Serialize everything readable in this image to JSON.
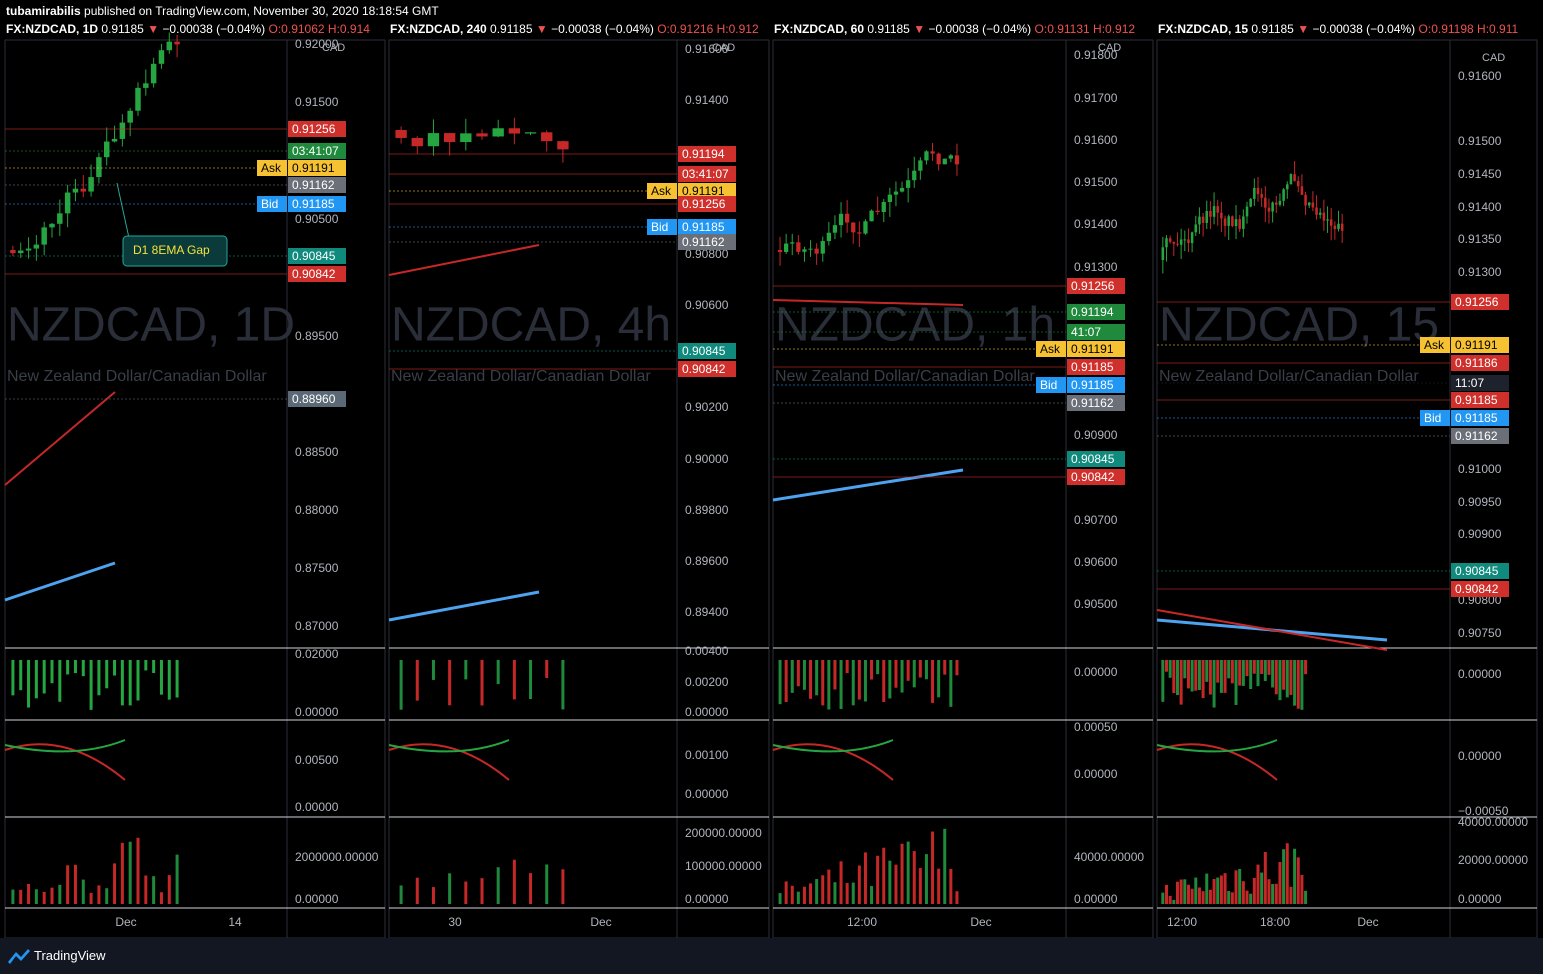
{
  "top_bar": {
    "user": "tubamirabilis",
    "text": "published on TradingView.com, November 30, 2020 18:18:54 GMT"
  },
  "footer": {
    "brand": "TradingView"
  },
  "panels": [
    {
      "header": {
        "symbol": "FX:NZDCAD, 1D",
        "price": "0.91185",
        "arrow": "▼",
        "change": "−0.00038 (−0.04%)",
        "open": "O:0.91062",
        "high": "H:0.914"
      },
      "watermark": "NZDCAD, 1D",
      "subtitle": "New Zealand Dollar/Canadian Dollar",
      "currency": "CAD",
      "price_axis": [
        "0.92000",
        "0.91500",
        "0.90500",
        "0.89500",
        "0.88500",
        "0.88000",
        "0.87500",
        "0.87000"
      ],
      "tags": [
        {
          "text": "0.91256",
          "kind": "red"
        },
        {
          "text": "03:41:07",
          "kind": "green"
        },
        {
          "text": "0.91191",
          "kind": "yellow",
          "prefix": "Ask"
        },
        {
          "text": "0.91162",
          "kind": "gray"
        },
        {
          "text": "0.91185",
          "kind": "blue",
          "prefix": "Bid"
        },
        {
          "text": "0.90845",
          "kind": "teal"
        },
        {
          "text": "0.90842",
          "kind": "red"
        },
        {
          "text": "0.88960",
          "kind": "slate"
        }
      ],
      "callout": "D1 8EMA Gap",
      "sub_axis": [
        "0.02000",
        "0.00000",
        "0.00500",
        "0.00000",
        "2000000.00000",
        "0.00000"
      ],
      "time_axis": [
        "Dec",
        "14"
      ]
    },
    {
      "header": {
        "symbol": "FX:NZDCAD, 240",
        "price": "0.91185",
        "arrow": "▼",
        "change": "−0.00038 (−0.04%)",
        "open": "O:0.91216",
        "high": "H:0.912"
      },
      "watermark": "NZDCAD, 4h",
      "subtitle": "New Zealand Dollar/Canadian Dollar",
      "currency": "CAD",
      "price_axis": [
        "0.91600",
        "0.91400",
        "0.90800",
        "0.90600",
        "0.90200",
        "0.90000",
        "0.89800",
        "0.89600",
        "0.89400"
      ],
      "tags": [
        {
          "text": "0.91194",
          "kind": "red"
        },
        {
          "text": "03:41:07",
          "kind": "red"
        },
        {
          "text": "0.91191",
          "kind": "yellow",
          "prefix": "Ask"
        },
        {
          "text": "0.91256",
          "kind": "red"
        },
        {
          "text": "0.91185",
          "kind": "blue",
          "prefix": "Bid"
        },
        {
          "text": "0.91162",
          "kind": "gray"
        },
        {
          "text": "0.90845",
          "kind": "teal"
        },
        {
          "text": "0.90842",
          "kind": "red"
        }
      ],
      "sub_axis": [
        "0.00400",
        "0.00200",
        "0.00000",
        "0.00100",
        "0.00000",
        "200000.00000",
        "100000.00000",
        "0.00000"
      ],
      "time_axis": [
        "30",
        "Dec"
      ]
    },
    {
      "header": {
        "symbol": "FX:NZDCAD, 60",
        "price": "0.91185",
        "arrow": "▼",
        "change": "−0.00038 (−0.04%)",
        "open": "O:0.91131",
        "high": "H:0.912"
      },
      "watermark": "NZDCAD, 1h",
      "subtitle": "New Zealand Dollar/Canadian Dollar",
      "currency": "CAD",
      "price_axis": [
        "0.91800",
        "0.91700",
        "0.91600",
        "0.91500",
        "0.91400",
        "0.91300",
        "0.90900",
        "0.90700",
        "0.90600",
        "0.90500"
      ],
      "tags": [
        {
          "text": "0.91256",
          "kind": "red"
        },
        {
          "text": "0.91194",
          "kind": "green"
        },
        {
          "text": "41:07",
          "kind": "green"
        },
        {
          "text": "0.91191",
          "kind": "yellow",
          "prefix": "Ask"
        },
        {
          "text": "0.91185",
          "kind": "red"
        },
        {
          "text": "0.91185",
          "kind": "blue",
          "prefix": "Bid"
        },
        {
          "text": "0.91162",
          "kind": "gray"
        },
        {
          "text": "0.90845",
          "kind": "teal"
        },
        {
          "text": "0.90842",
          "kind": "red"
        }
      ],
      "sub_axis": [
        "0.00000",
        "0.00050",
        "0.00000",
        "40000.00000",
        "0.00000"
      ],
      "time_axis": [
        "12:00",
        "Dec"
      ]
    },
    {
      "header": {
        "symbol": "FX:NZDCAD, 15",
        "price": "0.91185",
        "arrow": "▼",
        "change": "−0.00038 (−0.04%)",
        "open": "O:0.91198",
        "high": "H:0.911"
      },
      "watermark": "NZDCAD, 15",
      "subtitle": "New Zealand Dollar/Canadian Dollar",
      "currency": "CAD",
      "price_axis": [
        "0.91600",
        "0.91500",
        "0.91450",
        "0.91400",
        "0.91350",
        "0.91300",
        "0.91000",
        "0.90950",
        "0.90900",
        "0.90800",
        "0.90750"
      ],
      "tags": [
        {
          "text": "0.91256",
          "kind": "red"
        },
        {
          "text": "0.91191",
          "kind": "yellow",
          "prefix": "Ask"
        },
        {
          "text": "0.91186",
          "kind": "red"
        },
        {
          "text": "11:07",
          "kind": "dark"
        },
        {
          "text": "0.91185",
          "kind": "red"
        },
        {
          "text": "0.91185",
          "kind": "blue",
          "prefix": "Bid"
        },
        {
          "text": "0.91162",
          "kind": "gray"
        },
        {
          "text": "0.90845",
          "kind": "teal"
        },
        {
          "text": "0.90842",
          "kind": "red"
        }
      ],
      "sub_axis": [
        "0.00000",
        "0.00000",
        "−0.00050",
        "40000.00000",
        "20000.00000",
        "0.00000"
      ],
      "time_axis": [
        "12:00",
        "18:00",
        "Dec"
      ]
    }
  ]
}
